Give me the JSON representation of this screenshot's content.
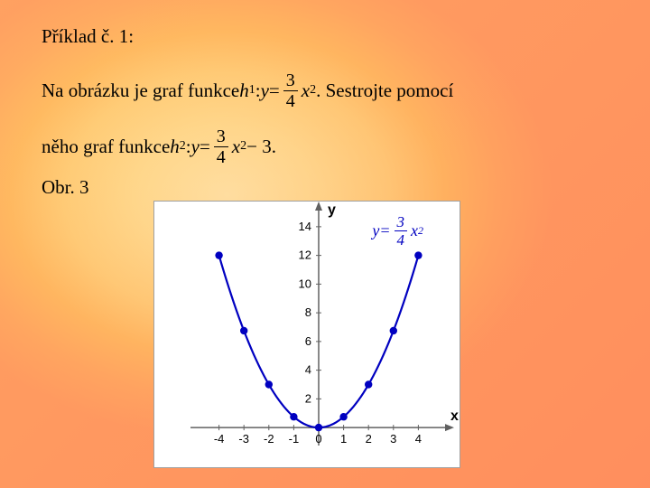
{
  "title": "Příklad č. 1:",
  "line1_a": "Na obrázku  je graf funkce ",
  "h1": "h",
  "h1_sub": "1",
  "colon": ": ",
  "y": "y",
  "equals": " = ",
  "frac_num": "3",
  "frac_den": "4",
  "x": "x",
  "sq": "2",
  "line1_b": ". Sestrojte pomocí",
  "line2_a": "něho graf funkce ",
  "h2": "h",
  "h2_sub": "2",
  "minus3": " − 3",
  "period": ".",
  "obr": "Obr. 3",
  "chart": {
    "type": "line",
    "xlabel": "x",
    "ylabel": "y",
    "xlim": [
      -5,
      5
    ],
    "ylim": [
      -1,
      15
    ],
    "xtick_start": -4,
    "xtick_end": 4,
    "xtick_step": 1,
    "ytick_start": 2,
    "ytick_end": 14,
    "ytick_step": 2,
    "points_x": [
      -4,
      -3,
      -2,
      -1,
      0,
      1,
      2,
      3,
      4
    ],
    "points_y": [
      12,
      6.75,
      3,
      0.75,
      0,
      0.75,
      3,
      6.75,
      12
    ],
    "line_color": "#0000c0",
    "marker_color": "#0000c0",
    "marker_size": 4.2,
    "line_width": 2.2,
    "axis_color": "#606060",
    "tick_color": "#000000",
    "background": "#ffffff",
    "label_fontsize": 13,
    "axis_label_fontsize": 16
  },
  "chart_eq_label": "y",
  "chart_eq_eq": " = "
}
